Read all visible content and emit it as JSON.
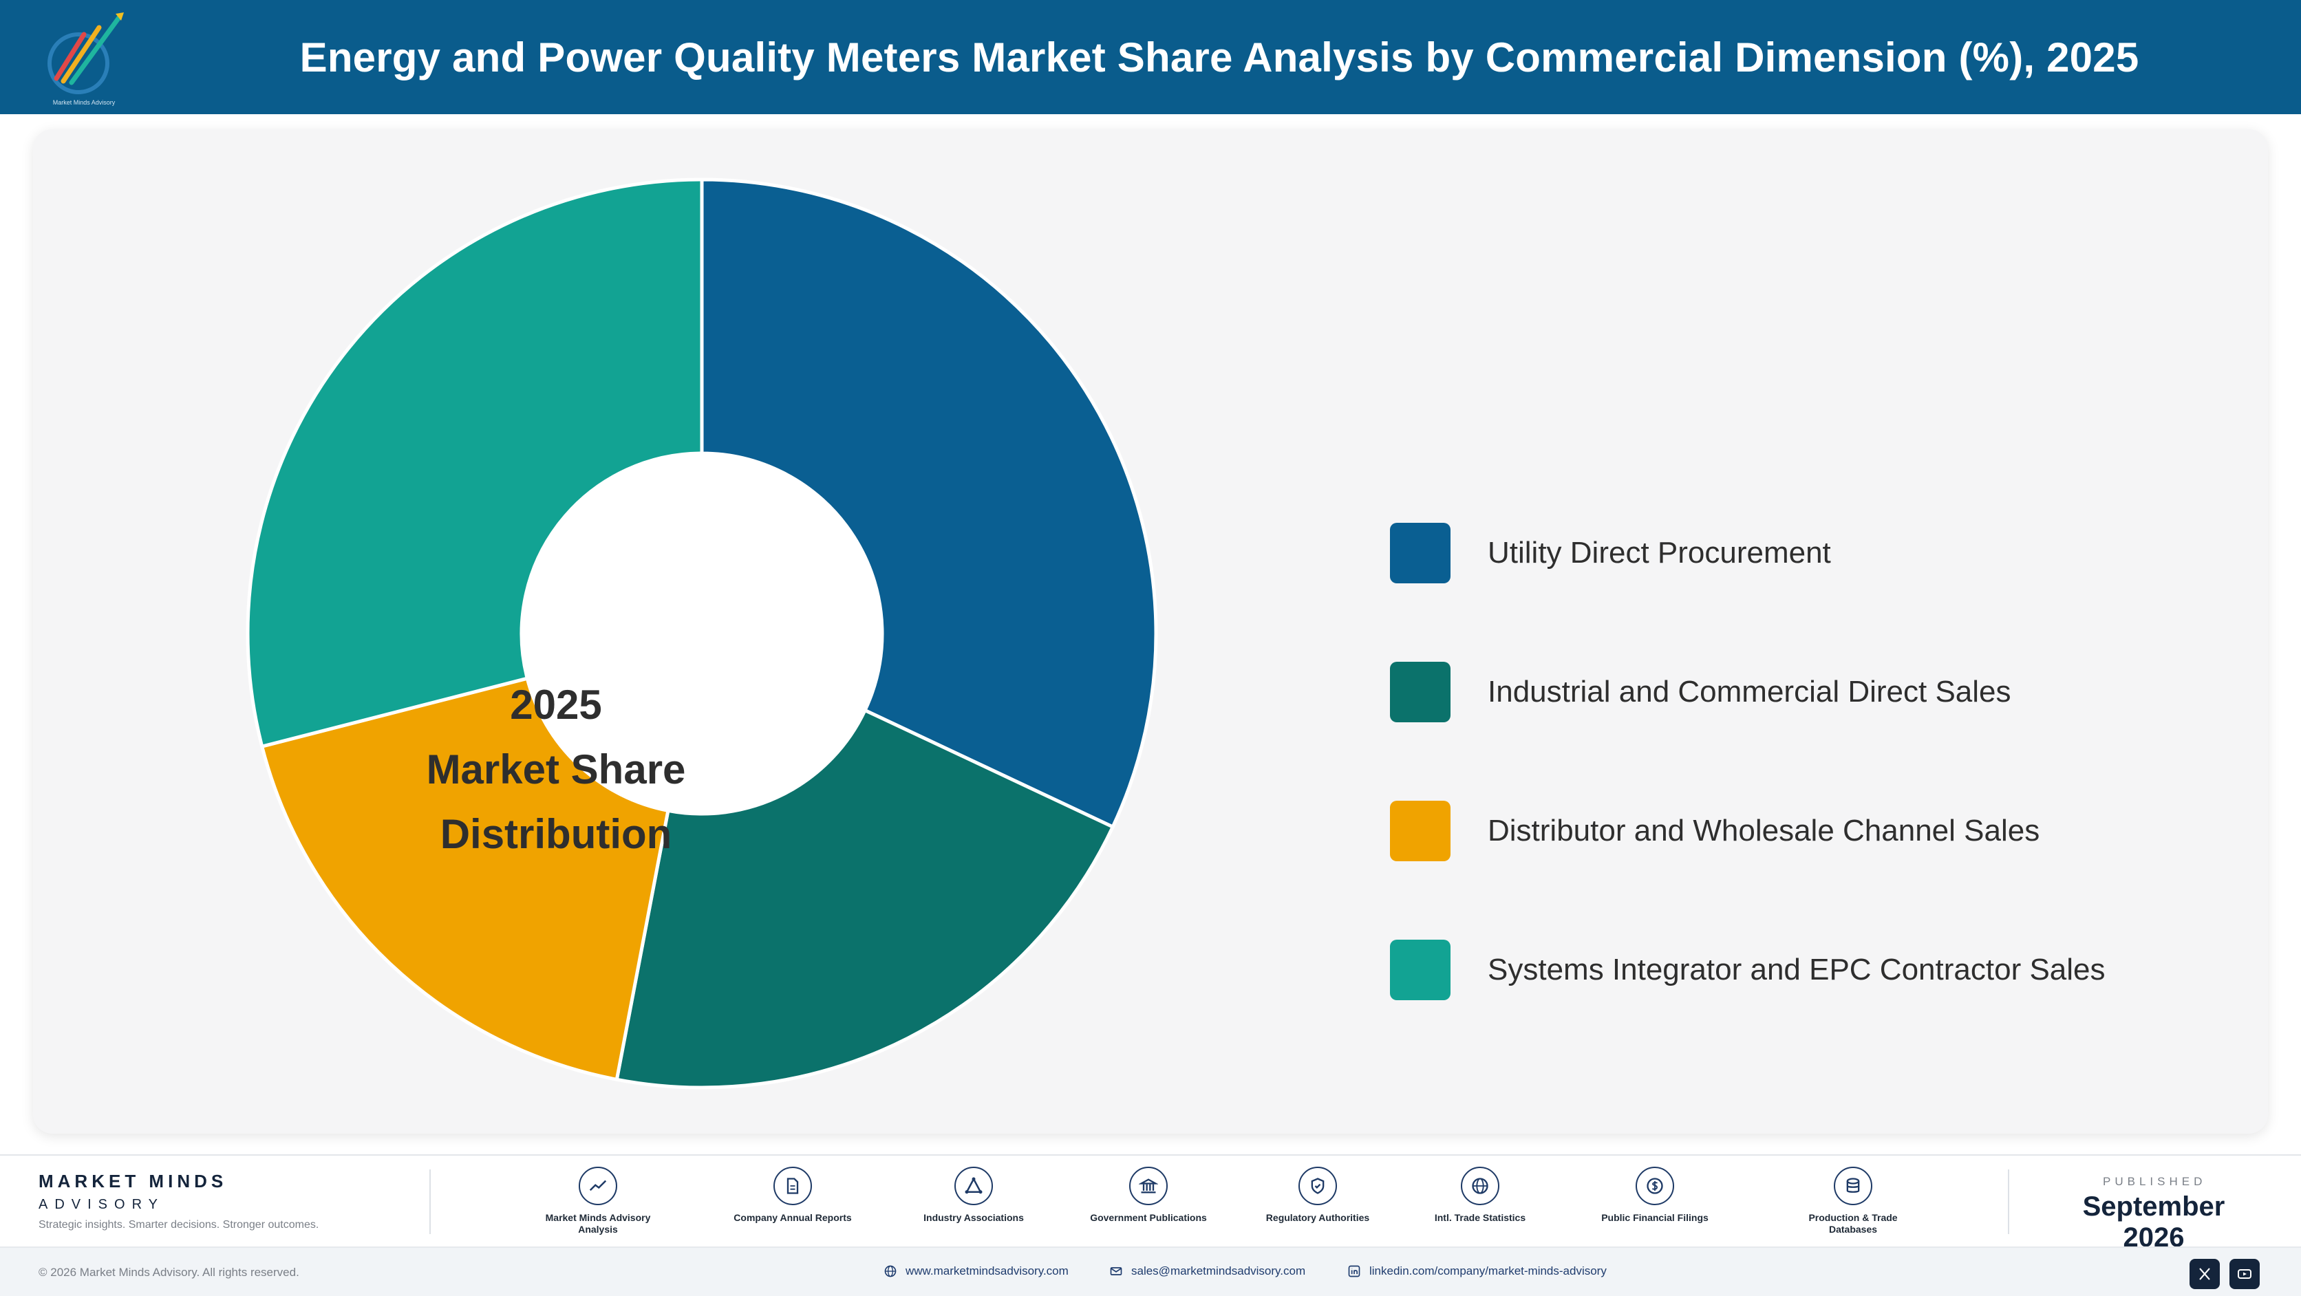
{
  "title": "Energy and Power Quality Meters Market Share Analysis by Commercial Dimension (%), 2025",
  "logo": {
    "caption": "Market Minds Advisory"
  },
  "chart_data": {
    "type": "pie",
    "style": "donut",
    "center_label": [
      "2025",
      "Market Share",
      "Distribution"
    ],
    "categories": [
      "Utility Direct Procurement",
      "Industrial and Commercial Direct Sales",
      "Distributor and Wholesale Channel Sales",
      "Systems Integrator and EPC Contractor Sales"
    ],
    "values": [
      32,
      21,
      18,
      29
    ],
    "colors": [
      "#0a5f92",
      "#0b726b",
      "#f0a300",
      "#12a393"
    ],
    "legend_position": "right"
  },
  "footer": {
    "brand_name": "MARKET MINDS",
    "brand_sub": "ADVISORY",
    "tagline": "Strategic insights. Smarter decisions. Stronger outcomes.",
    "sources": [
      {
        "label": "Market Minds Advisory Analysis",
        "icon": "trend-chart-icon"
      },
      {
        "label": "Company Annual Reports",
        "icon": "document-icon"
      },
      {
        "label": "Industry Associations",
        "icon": "network-icon"
      },
      {
        "label": "Government Publications",
        "icon": "government-building-icon"
      },
      {
        "label": "Regulatory Authorities",
        "icon": "shield-check-icon"
      },
      {
        "label": "Intl. Trade Statistics",
        "icon": "globe-icon"
      },
      {
        "label": "Public Financial Filings",
        "icon": "dollar-coin-icon"
      },
      {
        "label": "Production & Trade Databases",
        "icon": "database-icon"
      }
    ],
    "published_label": "PUBLISHED",
    "published_date": "September 2026",
    "copyright": "© 2026 Market Minds Advisory. All rights reserved.",
    "website": "www.marketmindsadvisory.com",
    "email": "sales@marketmindsadvisory.com",
    "linkedin": "linkedin.com/company/market-minds-advisory"
  }
}
